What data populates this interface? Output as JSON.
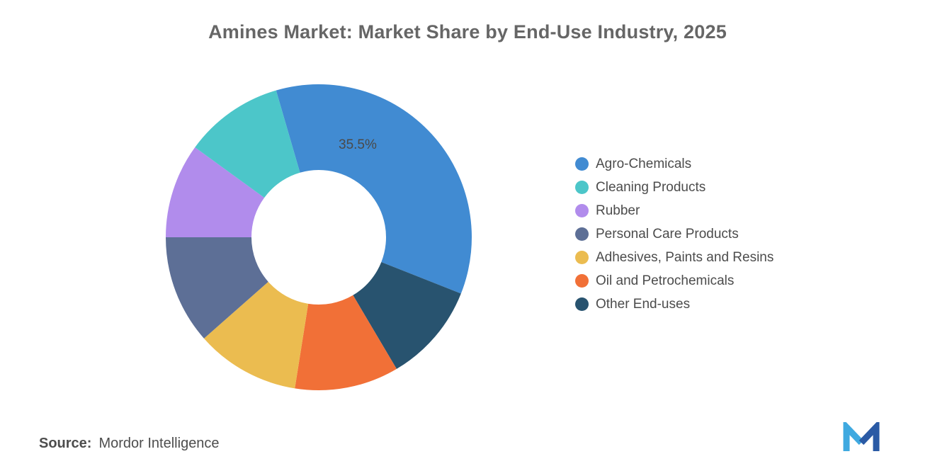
{
  "title": "Amines Market: Market Share by End-Use Industry, 2025",
  "chart_data": {
    "type": "pie",
    "subtype": "donut",
    "title": "Amines Market: Market Share by End-Use Industry, 2025",
    "legend_position": "right",
    "categories": [
      "Agro-Chemicals",
      "Cleaning Products",
      "Rubber",
      "Personal Care Products",
      "Adhesives, Paints and Resins",
      "Oil and Petrochemicals",
      "Other End-uses"
    ],
    "values": [
      35.5,
      10.5,
      10,
      11.5,
      11,
      11,
      10.5
    ],
    "colors": [
      "#418BD2",
      "#4CC6C9",
      "#B18CEC",
      "#5D6F96",
      "#EBBC50",
      "#F17037",
      "#28536F"
    ],
    "label": {
      "text": "35.5%",
      "segment": "Agro-Chemicals"
    }
  },
  "source": {
    "prefix": "Source:",
    "name": "Mordor Intelligence"
  },
  "logo": {
    "alt": "Mordor Intelligence logo",
    "color_light": "#3FA9E0",
    "color_dark": "#2A5AA5"
  }
}
